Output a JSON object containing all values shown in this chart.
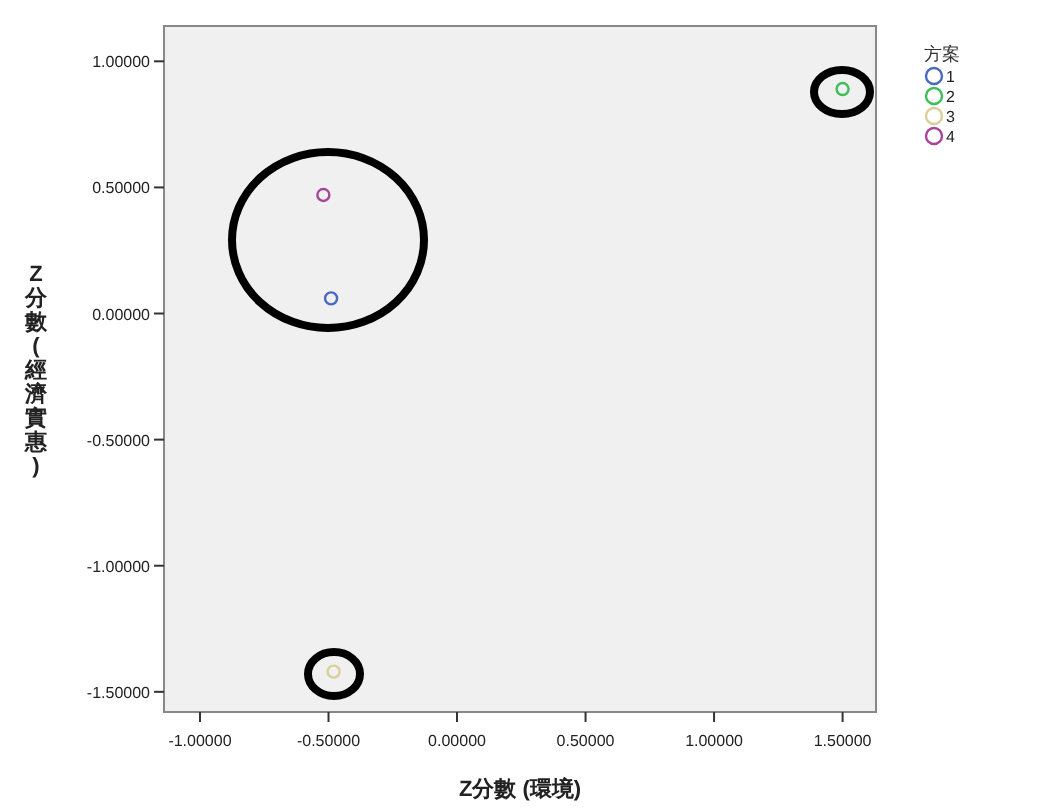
{
  "chart_data": {
    "type": "scatter",
    "xlabel": "Z分數 (環境)",
    "ylabel": "Z分數 (經濟實惠)",
    "legend_title": "方案",
    "series": [
      {
        "name": "1",
        "color": "#4a68c0",
        "x": [
          -0.49
        ],
        "values": [
          0.06
        ]
      },
      {
        "name": "2",
        "color": "#3cbf5a",
        "x": [
          1.5
        ],
        "values": [
          0.89
        ]
      },
      {
        "name": "3",
        "color": "#d8d09a",
        "x": [
          -0.48
        ],
        "values": [
          -1.42
        ]
      },
      {
        "name": "4",
        "color": "#a8449a",
        "x": [
          -0.52
        ],
        "values": [
          0.47
        ]
      }
    ],
    "xlim": [
      -1.14,
      1.63
    ],
    "ylim": [
      -1.58,
      1.14
    ],
    "xticks": [
      {
        "value": -1,
        "label": "-1.00000"
      },
      {
        "value": -0.5,
        "label": "-0.50000"
      },
      {
        "value": 0,
        "label": "0.00000"
      },
      {
        "value": 0.5,
        "label": "0.50000"
      },
      {
        "value": 1,
        "label": "1.00000"
      },
      {
        "value": 1.5,
        "label": "1.50000"
      }
    ],
    "yticks": [
      {
        "value": -1.5,
        "label": "-1.50000"
      },
      {
        "value": -1,
        "label": "-1.00000"
      },
      {
        "value": -0.5,
        "label": "-0.50000"
      },
      {
        "value": 0,
        "label": "0.00000"
      },
      {
        "value": 0.5,
        "label": "0.50000"
      },
      {
        "value": 1,
        "label": "1.00000"
      }
    ],
    "marker": "circle",
    "legend": "top right",
    "grid": false
  }
}
